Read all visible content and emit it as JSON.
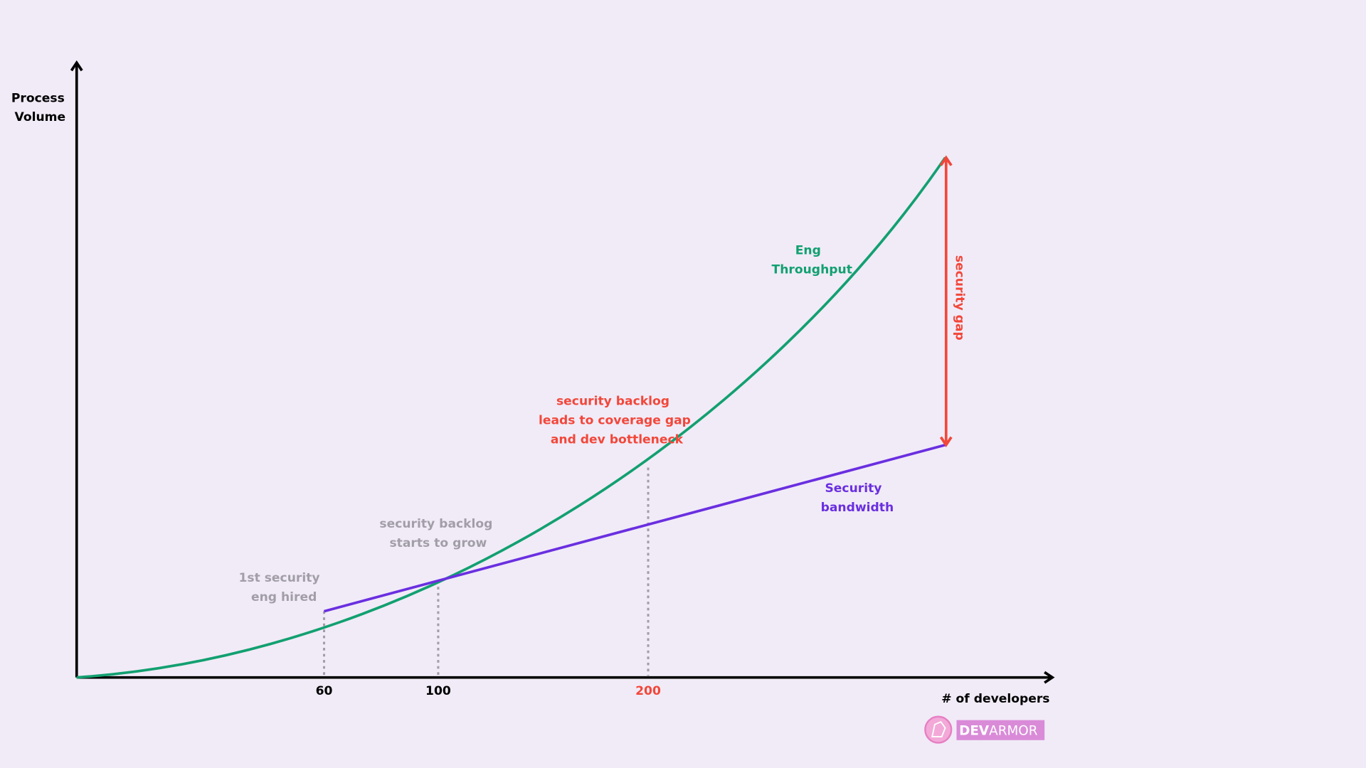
{
  "y_axis_label": [
    "Process",
    "Volume"
  ],
  "x_axis_label": "# of developers",
  "x_ticks": [
    "60",
    "100",
    "200"
  ],
  "series_labels": {
    "throughput": [
      "Eng",
      "Throughput"
    ],
    "bandwidth": [
      "Security",
      "bandwidth"
    ]
  },
  "annotations": {
    "hired": [
      "1st security",
      "eng hired"
    ],
    "backlog_grows": [
      "security backlog",
      "starts to grow"
    ],
    "backlog_gap": [
      "security backlog",
      "leads to coverage gap",
      "and dev bottleneck"
    ],
    "gap": "security gap"
  },
  "logo": {
    "bold": "DEV",
    "light": "ARMOR"
  }
}
